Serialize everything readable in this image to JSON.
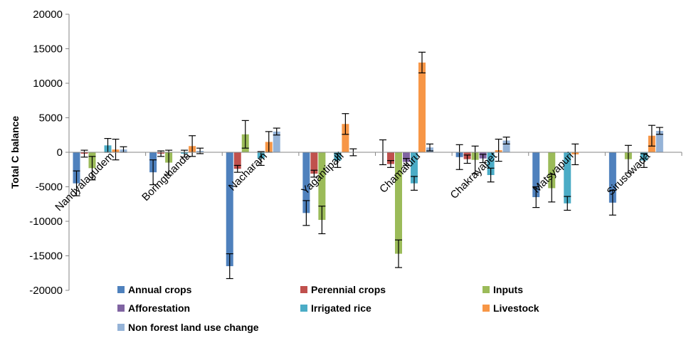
{
  "chart_data": {
    "type": "bar",
    "title": "",
    "xlabel": "",
    "ylabel": "Total C balance",
    "ylim": [
      -20000,
      20000
    ],
    "yticks": [
      20000,
      15000,
      10000,
      5000,
      0,
      -5000,
      -10000,
      -15000,
      -20000
    ],
    "ytick_labels": [
      "20000",
      "15000",
      "10000",
      "5000",
      "0",
      "-5000",
      "-10000",
      "-15000",
      "-20000"
    ],
    "categories": [
      "Nandyalagudem",
      "Boringthanda",
      "Nacharam",
      "Yagantipalli",
      "Chamaluru",
      "Chakrayapet",
      "Matsyapuri",
      "Sirusuwada"
    ],
    "grid": false,
    "legend_position": "bottom",
    "series": [
      {
        "name": "Annual crops",
        "color": "#4f81bd",
        "values": [
          -4500,
          -2900,
          -16500,
          -8800,
          0,
          -700,
          -6500,
          -7300
        ],
        "errors": [
          1800,
          1800,
          1800,
          1800,
          1800,
          1800,
          1500,
          1800
        ]
      },
      {
        "name": "Perennial crops",
        "color": "#c0504d",
        "values": [
          -200,
          -200,
          -2400,
          -3100,
          -1700,
          -1000,
          0,
          0
        ],
        "errors": [
          500,
          400,
          500,
          500,
          500,
          600,
          0,
          0
        ]
      },
      {
        "name": "Inputs",
        "color": "#9bbb59",
        "values": [
          -2300,
          -1500,
          2600,
          -9800,
          -14700,
          -1100,
          -5200,
          -1000
        ],
        "errors": [
          1700,
          1800,
          2000,
          2000,
          2000,
          2000,
          2000,
          2000
        ]
      },
      {
        "name": "Afforestation",
        "color": "#8064a2",
        "values": [
          0,
          0,
          0,
          0,
          -1400,
          -900,
          0,
          0
        ],
        "errors": [
          0,
          0,
          0,
          0,
          500,
          600,
          0,
          0
        ]
      },
      {
        "name": "Irrigated rice",
        "color": "#4bacc6",
        "values": [
          1000,
          -200,
          -900,
          -1200,
          -4500,
          -3300,
          -7400,
          -1200
        ],
        "errors": [
          1000,
          500,
          1000,
          1000,
          1000,
          1000,
          1000,
          1000
        ]
      },
      {
        "name": "Livestock",
        "color": "#f79646",
        "values": [
          400,
          900,
          1500,
          4100,
          13000,
          300,
          -300,
          2400
        ],
        "errors": [
          1500,
          1500,
          1500,
          1500,
          1500,
          1600,
          1500,
          1500
        ]
      },
      {
        "name": "Non forest land use change",
        "color": "#95b3d7",
        "values": [
          400,
          200,
          3000,
          0,
          700,
          1700,
          0,
          3100
        ],
        "errors": [
          400,
          400,
          500,
          500,
          500,
          500,
          0,
          500
        ]
      }
    ]
  }
}
